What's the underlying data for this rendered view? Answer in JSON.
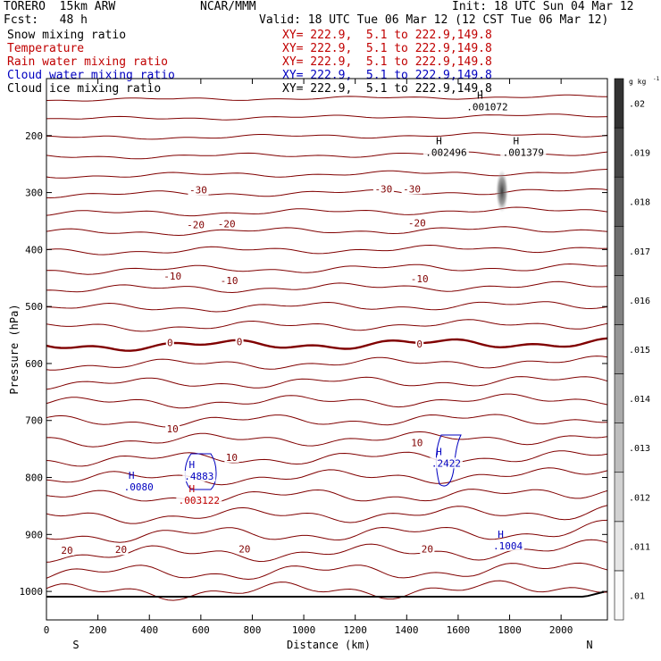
{
  "header": {
    "model": "TORERO  15km ARW",
    "org": "NCAR/MMM",
    "init": "Init: 18 UTC Sun 04 Mar 12",
    "fcst": "Fcst:   48 h",
    "valid": "Valid: 18 UTC Tue 06 Mar 12 (12 CST Tue 06 Mar 12)"
  },
  "fields": [
    {
      "name": "Snow mixing ratio",
      "xy": "XY= 222.9,  5.1 to 222.9,149.8",
      "color": "#000000"
    },
    {
      "name": "Temperature",
      "xy": "XY= 222.9,  5.1 to 222.9,149.8",
      "color": "#c00000"
    },
    {
      "name": "Rain water mixing ratio",
      "xy": "XY= 222.9,  5.1 to 222.9,149.8",
      "color": "#c00000"
    },
    {
      "name": "Cloud water mixing ratio",
      "xy": "XY= 222.9,  5.1 to 222.9,149.8",
      "color": "#0000c0"
    },
    {
      "name": "Cloud ice mixing ratio",
      "xy": "XY= 222.9,  5.1 to 222.9,149.8",
      "color": "#000000"
    }
  ],
  "chart_data": {
    "type": "contour",
    "xlabel": "Distance (km)",
    "ylabel": "Pressure (hPa)",
    "xlim": [
      0,
      2180
    ],
    "ylim": [
      100,
      1050
    ],
    "xticks": [
      0,
      200,
      400,
      600,
      800,
      1000,
      1200,
      1400,
      1600,
      1800,
      2000
    ],
    "yticks": [
      200,
      300,
      400,
      500,
      600,
      700,
      800,
      900,
      1000
    ],
    "x_end_labels": [
      "S",
      "N"
    ],
    "colorbar": {
      "unit": "g kg",
      "unit_exp": "-1",
      "ticks": [
        ".01",
        ".011",
        ".012",
        ".013",
        ".014",
        ".015",
        ".016",
        ".017",
        ".018",
        ".019",
        ".02"
      ],
      "values": [
        0.01,
        0.011,
        0.012,
        0.013,
        0.014,
        0.015,
        0.016,
        0.017,
        0.018,
        0.019,
        0.02
      ]
    },
    "temperature_labels": [
      {
        "text": "-30",
        "x": 590,
        "p": 297
      },
      {
        "text": "-30",
        "x": 1310,
        "p": 295
      },
      {
        "text": "-30",
        "x": 1420,
        "p": 295
      },
      {
        "text": "-20",
        "x": 580,
        "p": 358
      },
      {
        "text": "-20",
        "x": 700,
        "p": 356
      },
      {
        "text": "-20",
        "x": 1440,
        "p": 355
      },
      {
        "text": "-10",
        "x": 490,
        "p": 448
      },
      {
        "text": "-10",
        "x": 710,
        "p": 456
      },
      {
        "text": "-10",
        "x": 1450,
        "p": 453
      },
      {
        "text": "0",
        "x": 480,
        "p": 565
      },
      {
        "text": "0",
        "x": 750,
        "p": 563
      },
      {
        "text": "0",
        "x": 1450,
        "p": 567
      },
      {
        "text": "10",
        "x": 490,
        "p": 716
      },
      {
        "text": "10",
        "x": 720,
        "p": 766
      },
      {
        "text": "10",
        "x": 1440,
        "p": 740
      },
      {
        "text": "20",
        "x": 80,
        "p": 929
      },
      {
        "text": "20",
        "x": 290,
        "p": 928
      },
      {
        "text": "20",
        "x": 770,
        "p": 927
      },
      {
        "text": "20",
        "x": 1480,
        "p": 927
      }
    ],
    "maxima": [
      {
        "field": "Cloud water mixing ratio",
        "value": ".0080",
        "x": 365,
        "p": 815
      },
      {
        "field": "Cloud water mixing ratio",
        "value": ".4883",
        "x": 600,
        "p": 796
      },
      {
        "field": "Rain water mixing ratio",
        "value": ".003122",
        "x": 600,
        "p": 838
      },
      {
        "field": "Cloud water mixing ratio",
        "value": ".2422",
        "x": 1560,
        "p": 773
      },
      {
        "field": "Cloud water mixing ratio",
        "value": ".1004",
        "x": 1800,
        "p": 918
      },
      {
        "field": "Cloud ice mixing ratio",
        "value": ".002496",
        "x": 1560,
        "p": 228
      },
      {
        "field": "Cloud ice mixing ratio",
        "value": ".001379",
        "x": 1860,
        "p": 228
      },
      {
        "field": "Cloud ice mixing ratio",
        "value": ".001072",
        "x": 1720,
        "p": 148
      }
    ]
  }
}
